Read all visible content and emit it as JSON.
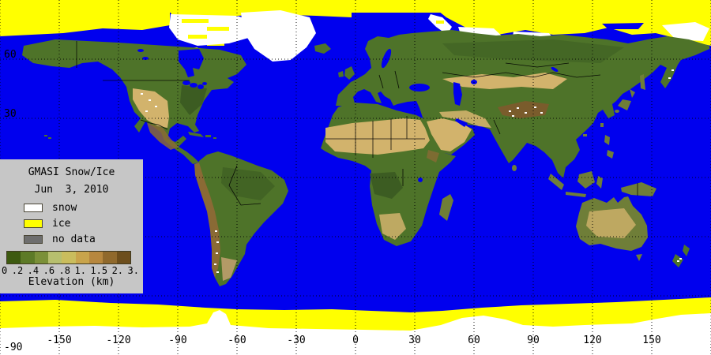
{
  "colors": {
    "ocean": "#0000ee",
    "ice": "#ffff00",
    "snow": "#ffffff",
    "noData": "#6e6e6e",
    "legendBg": "#c6c6c6",
    "land": "#4e7329",
    "landDark": "#3c5c22",
    "landLight": "#7d9a4a",
    "landOlive": "#6f7e38",
    "desert": "#d2b36c",
    "mountain": "#8a6a35",
    "tibet": "#7a5c2c",
    "patagonia": "#b39a66",
    "grid": "#000000",
    "border": "#000000",
    "text": "#000000"
  },
  "legend": {
    "title": "GMASI Snow/Ice",
    "date": "Jun  3, 2010",
    "items": [
      {
        "label": "snow",
        "color": "#ffffff"
      },
      {
        "label": "ice",
        "color": "#ffff00"
      },
      {
        "label": "no data",
        "color": "#6e6e6e"
      }
    ],
    "colorbar": {
      "caption": "Elevation (km)",
      "tick_labels": [
        "0",
        ".2",
        ".4",
        ".6",
        ".8",
        "1.",
        "1.5",
        "2.",
        "3."
      ],
      "colors": [
        "#3d5a10",
        "#5d7a27",
        "#7b9038",
        "#b7bf6e",
        "#cabd5d",
        "#c9a44b",
        "#b7873e",
        "#90692c",
        "#6d4e1c"
      ]
    }
  },
  "axes": {
    "x_ticks": [
      {
        "deg": -150,
        "label": "-150"
      },
      {
        "deg": -120,
        "label": "-120"
      },
      {
        "deg": -90,
        "label": "-90"
      },
      {
        "deg": -60,
        "label": "-60"
      },
      {
        "deg": -30,
        "label": "-30"
      },
      {
        "deg": 0,
        "label": "0"
      },
      {
        "deg": 30,
        "label": "30"
      },
      {
        "deg": 60,
        "label": "60"
      },
      {
        "deg": 90,
        "label": "90"
      },
      {
        "deg": 120,
        "label": "120"
      },
      {
        "deg": 150,
        "label": "150"
      }
    ],
    "y_ticks": [
      {
        "deg": 60,
        "label": "60"
      },
      {
        "deg": 30,
        "label": "30"
      },
      {
        "deg": -90,
        "label": "-90"
      }
    ],
    "grid_lons": [
      -180,
      -150,
      -120,
      -90,
      -60,
      -30,
      0,
      30,
      60,
      90,
      120,
      150,
      180
    ],
    "grid_lats": [
      60,
      30,
      0,
      -30,
      -60
    ]
  }
}
